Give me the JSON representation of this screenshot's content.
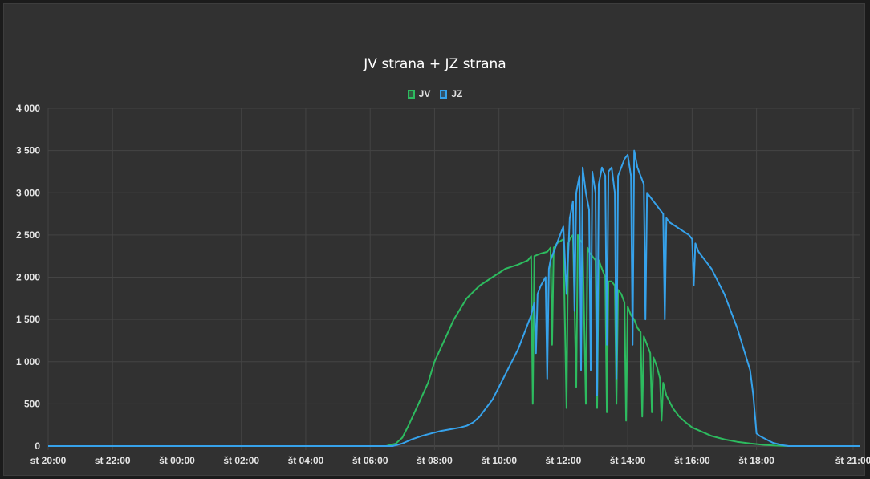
{
  "chart_data": {
    "type": "line",
    "title": "JV strana + JZ strana",
    "xlabel": "",
    "ylabel": "",
    "ylim": [
      0,
      4000
    ],
    "y_ticks": [
      {
        "value": 0,
        "label": "0"
      },
      {
        "value": 500,
        "label": "500"
      },
      {
        "value": 1000,
        "label": "1 000"
      },
      {
        "value": 1500,
        "label": "1 500"
      },
      {
        "value": 2000,
        "label": "2 000"
      },
      {
        "value": 2500,
        "label": "2 500"
      },
      {
        "value": 3000,
        "label": "3 000"
      },
      {
        "value": 3500,
        "label": "3 500"
      },
      {
        "value": 4000,
        "label": "4 000"
      }
    ],
    "x_unit": "hours",
    "xlim": [
      20,
      45.2
    ],
    "x_ticks": [
      {
        "value": 20,
        "label": "st 20:00"
      },
      {
        "value": 22,
        "label": "st 22:00"
      },
      {
        "value": 24,
        "label": "št 00:00"
      },
      {
        "value": 26,
        "label": "št 02:00"
      },
      {
        "value": 28,
        "label": "št 04:00"
      },
      {
        "value": 30,
        "label": "št 06:00"
      },
      {
        "value": 32,
        "label": "št 08:00"
      },
      {
        "value": 34,
        "label": "št 10:00"
      },
      {
        "value": 36,
        "label": "št 12:00"
      },
      {
        "value": 38,
        "label": "št 14:00"
      },
      {
        "value": 40,
        "label": "št 16:00"
      },
      {
        "value": 42,
        "label": "št 18:00"
      },
      {
        "value": 45,
        "label": "št 21:00"
      }
    ],
    "grid": true,
    "legend_position": "top-center",
    "series": [
      {
        "name": "JV",
        "color": "#2dbb5f",
        "x": [
          20,
          30.5,
          30.8,
          31,
          31.2,
          31.5,
          31.8,
          32,
          32.3,
          32.6,
          33,
          33.4,
          33.8,
          34.2,
          34.6,
          34.9,
          35,
          35.05,
          35.1,
          35.3,
          35.5,
          35.6,
          35.65,
          35.7,
          35.8,
          36,
          36.1,
          36.15,
          36.2,
          36.3,
          36.4,
          36.45,
          36.5,
          36.6,
          36.7,
          36.75,
          36.8,
          36.9,
          37,
          37.05,
          37.1,
          37.2,
          37.3,
          37.35,
          37.4,
          37.5,
          37.6,
          37.65,
          37.7,
          37.8,
          37.9,
          37.95,
          38,
          38.1,
          38.2,
          38.3,
          38.4,
          38.45,
          38.5,
          38.6,
          38.7,
          38.75,
          38.8,
          38.9,
          39,
          39.05,
          39.1,
          39.2,
          39.4,
          39.6,
          39.8,
          40,
          40.3,
          40.6,
          41,
          41.4,
          41.8,
          42.2,
          42.6,
          43,
          43.5,
          44
        ],
        "values": [
          0,
          0,
          30,
          100,
          250,
          500,
          750,
          1000,
          1250,
          1500,
          1750,
          1900,
          2000,
          2100,
          2150,
          2200,
          2250,
          500,
          2250,
          2280,
          2300,
          2350,
          1200,
          2350,
          2400,
          2450,
          450,
          2400,
          2450,
          2500,
          700,
          2500,
          2450,
          2400,
          500,
          2350,
          2300,
          2250,
          2200,
          450,
          2200,
          2100,
          2000,
          400,
          1950,
          1950,
          1900,
          500,
          1850,
          1800,
          1700,
          300,
          1650,
          1550,
          1500,
          1400,
          1350,
          350,
          1300,
          1200,
          1100,
          400,
          1050,
          950,
          800,
          300,
          750,
          600,
          450,
          350,
          280,
          220,
          170,
          120,
          80,
          50,
          30,
          15,
          5,
          0,
          0,
          0
        ]
      },
      {
        "name": "JZ",
        "color": "#36a2eb",
        "x": [
          20,
          30.7,
          31,
          31.3,
          31.6,
          31.9,
          32.2,
          32.5,
          32.8,
          33,
          33.2,
          33.4,
          33.6,
          33.8,
          34,
          34.2,
          34.4,
          34.6,
          34.8,
          35,
          35.1,
          35.15,
          35.2,
          35.3,
          35.45,
          35.5,
          35.55,
          35.6,
          35.7,
          35.8,
          35.9,
          36,
          36.1,
          36.2,
          36.3,
          36.35,
          36.4,
          36.5,
          36.55,
          36.6,
          36.7,
          36.8,
          36.85,
          36.9,
          37,
          37.05,
          37.1,
          37.2,
          37.3,
          37.35,
          37.4,
          37.5,
          37.6,
          37.65,
          37.7,
          37.8,
          37.9,
          38,
          38.1,
          38.15,
          38.2,
          38.3,
          38.4,
          38.5,
          38.55,
          38.6,
          38.7,
          38.8,
          38.9,
          39,
          39.1,
          39.15,
          39.2,
          39.3,
          39.5,
          39.7,
          39.9,
          40,
          40.05,
          40.1,
          40.2,
          40.4,
          40.6,
          40.8,
          41,
          41.2,
          41.4,
          41.6,
          41.8,
          41.9,
          42,
          42.1,
          42.3,
          42.5,
          42.8,
          43,
          45.2
        ],
        "values": [
          0,
          0,
          30,
          80,
          120,
          150,
          180,
          200,
          220,
          240,
          280,
          350,
          450,
          550,
          700,
          850,
          1000,
          1150,
          1350,
          1550,
          1700,
          1100,
          1800,
          1900,
          2000,
          800,
          2100,
          2200,
          2300,
          2400,
          2500,
          2600,
          1800,
          2700,
          2900,
          1600,
          3000,
          3200,
          900,
          3300,
          3000,
          2800,
          900,
          3250,
          3000,
          600,
          3100,
          3300,
          3200,
          1200,
          3250,
          3300,
          3000,
          800,
          3200,
          3300,
          3400,
          3450,
          3200,
          1200,
          3500,
          3300,
          3200,
          3100,
          1500,
          3000,
          2950,
          2900,
          2850,
          2800,
          2750,
          1500,
          2700,
          2650,
          2600,
          2550,
          2500,
          2450,
          1900,
          2400,
          2300,
          2200,
          2100,
          1950,
          1800,
          1600,
          1400,
          1150,
          900,
          600,
          150,
          120,
          80,
          40,
          10,
          0,
          0
        ]
      }
    ]
  }
}
